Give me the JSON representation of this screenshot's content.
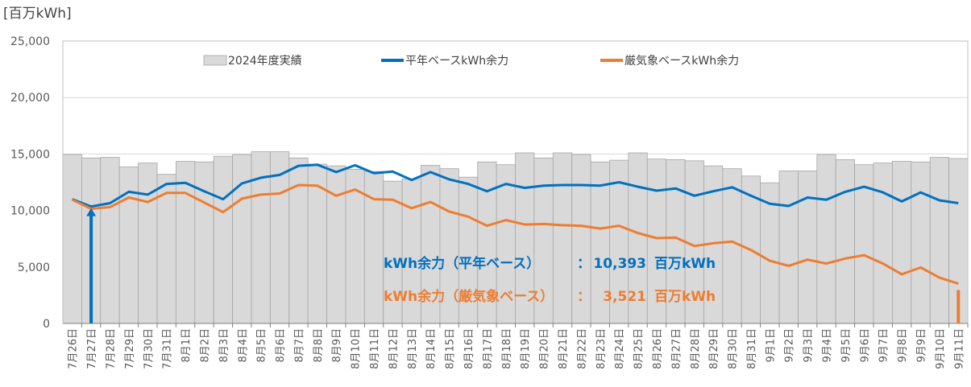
{
  "chart_data": {
    "type": "bar+line",
    "unit_label": "[百万kWh]",
    "ylim": [
      0,
      25000
    ],
    "yticks": [
      "0",
      "5,000",
      "10,000",
      "15,000",
      "20,000",
      "25,000"
    ],
    "grid": true,
    "legend_position": "top",
    "categories": [
      "7月26日",
      "7月27日",
      "7月28日",
      "7月29日",
      "7月30日",
      "7月31日",
      "8月1日",
      "8月2日",
      "8月3日",
      "8月4日",
      "8月5日",
      "8月6日",
      "8月7日",
      "8月8日",
      "8月9日",
      "8月10日",
      "8月11日",
      "8月12日",
      "8月13日",
      "8月14日",
      "8月15日",
      "8月16日",
      "8月17日",
      "8月18日",
      "8月19日",
      "8月20日",
      "8月21日",
      "8月22日",
      "8月23日",
      "8月24日",
      "8月25日",
      "8月26日",
      "8月27日",
      "8月28日",
      "8月29日",
      "8月30日",
      "8月31日",
      "9月1日",
      "9月2日",
      "9月3日",
      "9月4日",
      "9月5日",
      "9月6日",
      "9月7日",
      "9月8日",
      "9月9日",
      "9月10日",
      "9月11日"
    ],
    "series": [
      {
        "name": "2024年度実績",
        "kind": "bar",
        "color": "#d9d9d9",
        "values": [
          14950,
          14650,
          14700,
          13850,
          14200,
          13200,
          14350,
          14300,
          14800,
          14950,
          15200,
          15200,
          14650,
          14100,
          13950,
          13650,
          13450,
          12600,
          12800,
          14000,
          13700,
          12950,
          14300,
          14050,
          15100,
          14650,
          15100,
          14950,
          14300,
          14450,
          15100,
          14550,
          14500,
          14400,
          13950,
          13700,
          13050,
          12450,
          13500,
          13500,
          14950,
          14500,
          14050,
          14200,
          14350,
          14300,
          14700,
          14600
        ]
      },
      {
        "name": "平年ベースkWh余力",
        "kind": "line",
        "color": "#0070c0",
        "values": [
          11000,
          10350,
          10650,
          11650,
          11400,
          12350,
          12450,
          11700,
          11000,
          12400,
          12900,
          13150,
          13950,
          14050,
          13400,
          14000,
          13300,
          13450,
          12700,
          13400,
          12750,
          12350,
          11700,
          12350,
          12000,
          12200,
          12250,
          12250,
          12200,
          12500,
          12100,
          11750,
          11950,
          11300,
          11700,
          12050,
          11300,
          10600,
          10400,
          11150,
          10950,
          11650,
          12100,
          11600,
          10800,
          11600,
          10900,
          10650
        ]
      },
      {
        "name": "厳気象ベースkWh余力",
        "kind": "line",
        "color": "#ed7d31",
        "values": [
          10950,
          10150,
          10300,
          11150,
          10750,
          11550,
          11550,
          10700,
          9850,
          11050,
          11400,
          11500,
          12250,
          12200,
          11300,
          11850,
          11000,
          10950,
          10200,
          10750,
          9900,
          9450,
          8650,
          9150,
          8750,
          8800,
          8700,
          8650,
          8400,
          8650,
          8000,
          7550,
          7600,
          6850,
          7100,
          7250,
          6500,
          5550,
          5100,
          5650,
          5300,
          5750,
          6050,
          5300,
          4350,
          4950,
          4050,
          3521
        ]
      }
    ],
    "annotations": [
      {
        "label": "kWh余力（平年ベース）",
        "sep": "：",
        "value": "10,393",
        "unit": "百万kWh",
        "color": "#0070c0"
      },
      {
        "label": "kWh余力（厳気象ベース）",
        "sep": "：",
        "value": "3,521",
        "unit": "百万kWh",
        "color": "#ed7d31"
      }
    ],
    "markers": [
      {
        "category": "7月27日",
        "color": "#0070c0"
      },
      {
        "category": "9月11日",
        "color": "#ed7d31"
      }
    ]
  }
}
